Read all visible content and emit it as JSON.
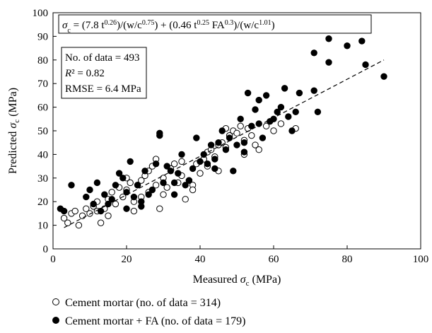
{
  "chart_data": {
    "type": "scatter",
    "xlabel_prefix": "Measured ",
    "xlabel_symbol": "σ",
    "xlabel_sub": "c",
    "xlabel_suffix": " (MPa)",
    "ylabel_prefix": "Predicted ",
    "ylabel_symbol": "σ",
    "ylabel_sub": "c",
    "ylabel_suffix": " (MPa)",
    "xlim": [
      0,
      100
    ],
    "ylim": [
      0,
      100
    ],
    "x_ticks": [
      0,
      20,
      40,
      60,
      80,
      100
    ],
    "y_ticks": [
      0,
      10,
      20,
      30,
      40,
      50,
      60,
      70,
      80,
      90,
      100
    ],
    "x_tick_labels": [
      "0",
      "20",
      "40",
      "60",
      "80",
      "100"
    ],
    "y_tick_labels": [
      "0",
      "10",
      "20",
      "30",
      "40",
      "50",
      "60",
      "70",
      "80",
      "90",
      "100"
    ],
    "equation": "σc = (7.8 t^0.26)/(w/c^0.75) + (0.46 t^0.25 FA^0.3)/(w/c^1.01)",
    "stats": {
      "n_label": "No. of data = 493",
      "r2_label": "R² = 0.82",
      "rmse_label": "RMSE = 6.4 MPa"
    },
    "fit_line": {
      "style": "dashed",
      "x": [
        3,
        90
      ],
      "y": [
        9,
        80
      ]
    },
    "series": [
      {
        "name": "Cement mortar (no. of data = 314)",
        "marker": "open-circle",
        "points": [
          [
            3,
            13
          ],
          [
            4,
            11
          ],
          [
            5,
            15
          ],
          [
            6,
            16
          ],
          [
            7,
            10
          ],
          [
            8,
            14
          ],
          [
            9,
            17
          ],
          [
            10,
            15
          ],
          [
            11,
            18
          ],
          [
            12,
            20
          ],
          [
            12,
            16
          ],
          [
            14,
            17
          ],
          [
            15,
            14
          ],
          [
            15,
            21
          ],
          [
            16,
            24
          ],
          [
            17,
            19
          ],
          [
            18,
            26
          ],
          [
            19,
            22
          ],
          [
            20,
            30
          ],
          [
            20,
            25
          ],
          [
            21,
            28
          ],
          [
            22,
            20
          ],
          [
            23,
            27
          ],
          [
            24,
            22
          ],
          [
            24,
            29
          ],
          [
            25,
            31
          ],
          [
            26,
            24
          ],
          [
            26,
            33
          ],
          [
            27,
            35
          ],
          [
            28,
            38
          ],
          [
            28,
            27
          ],
          [
            29,
            17
          ],
          [
            30,
            30
          ],
          [
            31,
            26
          ],
          [
            32,
            34
          ],
          [
            33,
            36
          ],
          [
            34,
            28
          ],
          [
            35,
            37
          ],
          [
            35,
            31
          ],
          [
            36,
            21
          ],
          [
            37,
            29
          ],
          [
            38,
            27
          ],
          [
            39,
            36
          ],
          [
            40,
            32
          ],
          [
            41,
            38
          ],
          [
            42,
            35
          ],
          [
            42,
            41
          ],
          [
            43,
            42
          ],
          [
            44,
            39
          ],
          [
            45,
            44
          ],
          [
            46,
            45
          ],
          [
            47,
            43
          ],
          [
            47,
            51
          ],
          [
            48,
            48
          ],
          [
            49,
            50
          ],
          [
            50,
            49
          ],
          [
            51,
            52
          ],
          [
            52,
            46
          ],
          [
            53,
            51
          ],
          [
            54,
            48
          ],
          [
            55,
            44
          ],
          [
            56,
            42
          ],
          [
            58,
            52
          ],
          [
            60,
            50
          ],
          [
            62,
            53
          ],
          [
            66,
            51
          ],
          [
            13,
            11
          ],
          [
            22,
            16
          ],
          [
            30,
            23
          ],
          [
            38,
            25
          ],
          [
            45,
            33
          ],
          [
            52,
            40
          ]
        ]
      },
      {
        "name": "Cement mortar + FA (no. of data = 179)",
        "marker": "filled-circle",
        "points": [
          [
            2,
            17
          ],
          [
            3,
            16
          ],
          [
            5,
            27
          ],
          [
            9,
            22
          ],
          [
            10,
            25
          ],
          [
            11,
            19
          ],
          [
            12,
            28
          ],
          [
            13,
            16
          ],
          [
            14,
            23
          ],
          [
            15,
            19
          ],
          [
            16,
            21
          ],
          [
            17,
            27
          ],
          [
            18,
            32
          ],
          [
            19,
            30
          ],
          [
            20,
            17
          ],
          [
            20,
            24
          ],
          [
            21,
            37
          ],
          [
            22,
            22
          ],
          [
            23,
            27
          ],
          [
            24,
            20
          ],
          [
            25,
            33
          ],
          [
            26,
            23
          ],
          [
            27,
            25
          ],
          [
            28,
            36
          ],
          [
            29,
            49
          ],
          [
            29,
            48
          ],
          [
            30,
            28
          ],
          [
            31,
            35
          ],
          [
            32,
            33
          ],
          [
            33,
            23
          ],
          [
            34,
            32
          ],
          [
            35,
            40
          ],
          [
            36,
            27
          ],
          [
            37,
            29
          ],
          [
            38,
            34
          ],
          [
            39,
            47
          ],
          [
            40,
            37
          ],
          [
            41,
            40
          ],
          [
            42,
            36
          ],
          [
            43,
            44
          ],
          [
            44,
            38
          ],
          [
            45,
            45
          ],
          [
            46,
            50
          ],
          [
            47,
            42
          ],
          [
            48,
            47
          ],
          [
            49,
            33
          ],
          [
            50,
            44
          ],
          [
            51,
            55
          ],
          [
            52,
            41
          ],
          [
            53,
            66
          ],
          [
            54,
            52
          ],
          [
            55,
            59
          ],
          [
            56,
            63
          ],
          [
            57,
            47
          ],
          [
            58,
            65
          ],
          [
            59,
            54
          ],
          [
            60,
            55
          ],
          [
            61,
            58
          ],
          [
            62,
            60
          ],
          [
            63,
            68
          ],
          [
            64,
            56
          ],
          [
            65,
            50
          ],
          [
            66,
            58
          ],
          [
            67,
            66
          ],
          [
            71,
            83
          ],
          [
            71,
            67
          ],
          [
            72,
            58
          ],
          [
            75,
            79
          ],
          [
            75,
            89
          ],
          [
            80,
            86
          ],
          [
            84,
            88
          ],
          [
            85,
            78
          ],
          [
            90,
            73
          ],
          [
            24,
            18
          ],
          [
            33,
            28
          ],
          [
            44,
            34
          ],
          [
            52,
            45
          ],
          [
            56,
            53
          ]
        ]
      }
    ],
    "legend": [
      {
        "name": "Cement mortar (no. of data = 314)",
        "marker": "open-circle"
      },
      {
        "name": "Cement mortar + FA (no. of data = 179)",
        "marker": "filled-circle"
      }
    ]
  }
}
